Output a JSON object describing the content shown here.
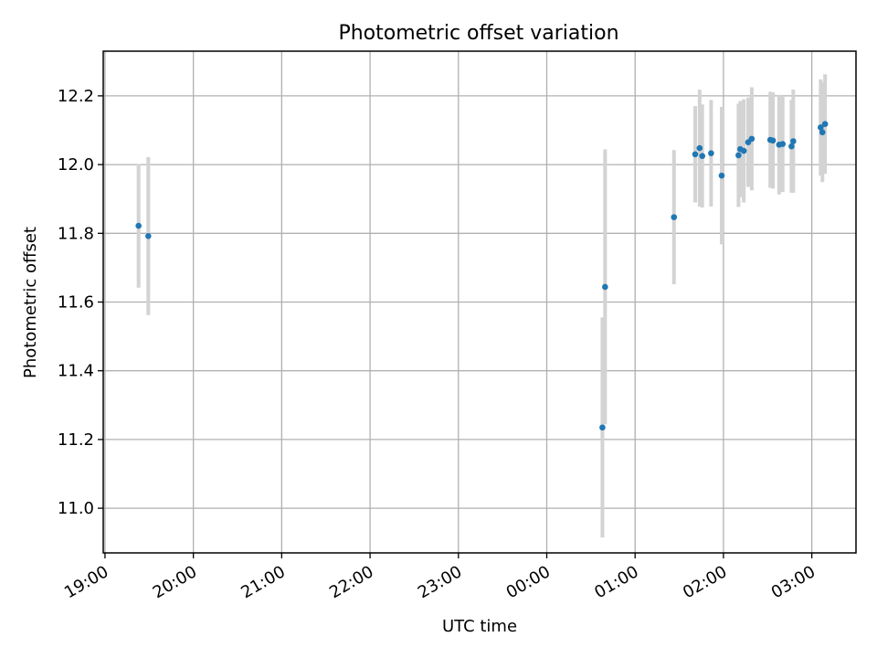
{
  "chart_data": {
    "type": "scatter",
    "title": "Photometric offset variation",
    "xlabel": "UTC time",
    "ylabel": "Photometric offset",
    "x_unit": "UTC time (hours after 19:00)",
    "xlim": [
      -0.02,
      8.5
    ],
    "ylim": [
      10.87,
      12.33
    ],
    "x_ticks": [
      {
        "value": 0,
        "label": "19:00"
      },
      {
        "value": 1,
        "label": "20:00"
      },
      {
        "value": 2,
        "label": "21:00"
      },
      {
        "value": 3,
        "label": "22:00"
      },
      {
        "value": 4,
        "label": "23:00"
      },
      {
        "value": 5,
        "label": "00:00"
      },
      {
        "value": 6,
        "label": "01:00"
      },
      {
        "value": 7,
        "label": "02:00"
      },
      {
        "value": 8,
        "label": "03:00"
      }
    ],
    "y_ticks": [
      {
        "value": 11.0,
        "label": "11.0"
      },
      {
        "value": 11.2,
        "label": "11.2"
      },
      {
        "value": 11.4,
        "label": "11.4"
      },
      {
        "value": 11.6,
        "label": "11.6"
      },
      {
        "value": 11.8,
        "label": "11.8"
      },
      {
        "value": 12.0,
        "label": "12.0"
      },
      {
        "value": 12.2,
        "label": "12.2"
      }
    ],
    "grid": true,
    "colors": {
      "points": "#1f77b4",
      "errorbars": "#d3d3d3",
      "grid": "#b0b0b0"
    },
    "points": [
      {
        "x": 0.38,
        "y": 11.822,
        "err": 0.18
      },
      {
        "x": 0.49,
        "y": 11.792,
        "err": 0.23
      },
      {
        "x": 6.44,
        "y": 11.847,
        "err": 0.195
      },
      {
        "x": 5.63,
        "y": 11.235,
        "err": 0.32
      },
      {
        "x": 5.66,
        "y": 11.644,
        "err": 0.4
      },
      {
        "x": 6.68,
        "y": 12.03,
        "err": 0.14
      },
      {
        "x": 6.73,
        "y": 12.048,
        "err": 0.17
      },
      {
        "x": 6.76,
        "y": 12.025,
        "err": 0.15
      },
      {
        "x": 6.86,
        "y": 12.033,
        "err": 0.155
      },
      {
        "x": 6.98,
        "y": 11.968,
        "err": 0.2
      },
      {
        "x": 7.17,
        "y": 12.027,
        "err": 0.15
      },
      {
        "x": 7.19,
        "y": 12.045,
        "err": 0.14
      },
      {
        "x": 7.23,
        "y": 12.04,
        "err": 0.15
      },
      {
        "x": 7.28,
        "y": 12.065,
        "err": 0.13
      },
      {
        "x": 7.32,
        "y": 12.075,
        "err": 0.15
      },
      {
        "x": 7.53,
        "y": 12.072,
        "err": 0.14
      },
      {
        "x": 7.56,
        "y": 12.07,
        "err": 0.14
      },
      {
        "x": 7.63,
        "y": 12.058,
        "err": 0.145
      },
      {
        "x": 7.67,
        "y": 12.06,
        "err": 0.14
      },
      {
        "x": 7.77,
        "y": 12.053,
        "err": 0.135
      },
      {
        "x": 7.79,
        "y": 12.068,
        "err": 0.15
      },
      {
        "x": 8.1,
        "y": 12.108,
        "err": 0.14
      },
      {
        "x": 8.12,
        "y": 12.094,
        "err": 0.145
      },
      {
        "x": 8.15,
        "y": 12.118,
        "err": 0.145
      }
    ]
  }
}
